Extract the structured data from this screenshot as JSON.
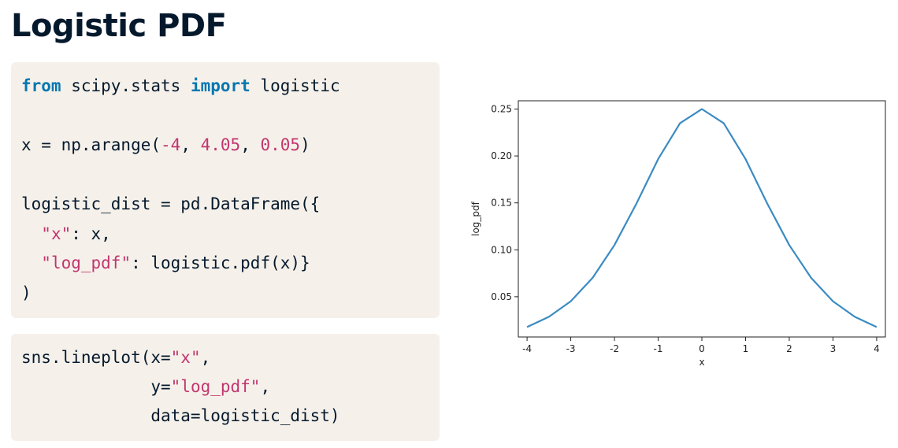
{
  "page": {
    "title": "Logistic PDF"
  },
  "code_block_1": {
    "l1_kw1": "from",
    "l1_mod": " scipy.stats ",
    "l1_kw2": "import",
    "l1_name": " logistic",
    "l3_a": "x = np.arange(",
    "l3_n1": "-4",
    "l3_s1": ", ",
    "l3_n2": "4.05",
    "l3_s2": ", ",
    "l3_n3": "0.05",
    "l3_end": ")",
    "l5": "logistic_dist = pd.DataFrame({",
    "l6_indent": "  ",
    "l6_key": "\"x\"",
    "l6_rest": ": x,",
    "l7_indent": "  ",
    "l7_key": "\"log_pdf\"",
    "l7_rest": ": logistic.pdf(x)}",
    "l8": ")"
  },
  "code_block_2": {
    "l1_a": "sns.lineplot(x=",
    "l1_str": "\"x\"",
    "l1_end": ",",
    "l2_indent": "             y=",
    "l2_str": "\"log_pdf\"",
    "l2_end": ",",
    "l3": "             data=logistic_dist)"
  },
  "chart_data": {
    "type": "line",
    "title": "",
    "xlabel": "x",
    "ylabel": "log_pdf",
    "xlim": [
      -4.2,
      4.2
    ],
    "ylim": [
      0.0071,
      0.2588
    ],
    "x_ticks": [
      "-4",
      "-3",
      "-2",
      "-1",
      "0",
      "1",
      "2",
      "3",
      "4"
    ],
    "x_tick_values": [
      -4,
      -3,
      -2,
      -1,
      0,
      1,
      2,
      3,
      4
    ],
    "y_ticks": [
      "0.05",
      "0.10",
      "0.15",
      "0.20",
      "0.25"
    ],
    "y_tick_values": [
      0.05,
      0.1,
      0.15,
      0.2,
      0.25
    ],
    "grid": false,
    "series": [
      {
        "color": "#3b8bc2",
        "x": [
          -4,
          -3.5,
          -3,
          -2.5,
          -2,
          -1.5,
          -1,
          -0.5,
          0,
          0.5,
          1,
          1.5,
          2,
          2.5,
          3,
          3.5,
          4
        ],
        "y": [
          0.0177,
          0.0286,
          0.0452,
          0.0701,
          0.105,
          0.149,
          0.1966,
          0.235,
          0.25,
          0.235,
          0.1966,
          0.149,
          0.105,
          0.0701,
          0.0452,
          0.0286,
          0.0177
        ]
      }
    ]
  }
}
